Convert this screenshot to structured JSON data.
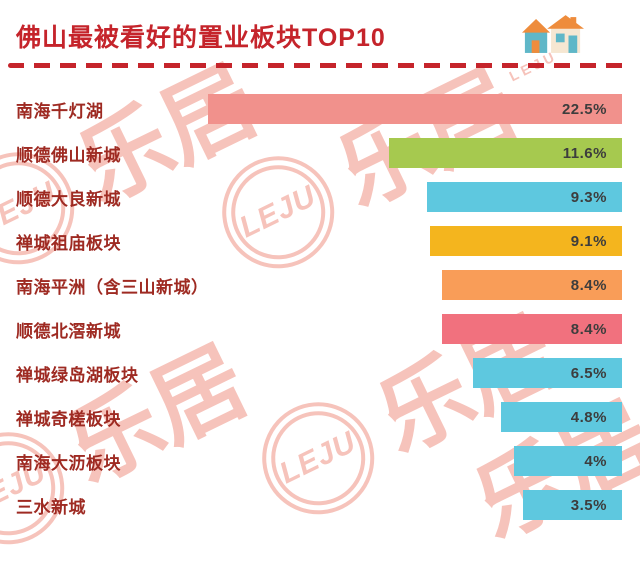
{
  "title": "佛山最被看好的置业板块TOP10",
  "watermark": {
    "logo": "LEJU",
    "brand": "乐居",
    "sub": "LEJU"
  },
  "colors": {
    "title": "#c5242b",
    "category_label": "#9e2a22",
    "value_text": "#3d3d3d",
    "dashed_line": "#c5242b",
    "watermark": "#f6c3bb",
    "default_bar": "#5ec8df"
  },
  "icons": {
    "top_right": "twin-houses-icon",
    "background": "leju-logo-icon"
  },
  "chart_data": {
    "type": "bar",
    "orientation": "horizontal",
    "title": "佛山最被看好的置业板块TOP10",
    "categories": [
      "南海千灯湖",
      "顺德佛山新城",
      "顺德大良新城",
      "禅城祖庙板块",
      "南海平洲（含三山新城）",
      "顺德北滘新城",
      "禅城绿岛湖板块",
      "禅城奇槎板块",
      "南海大沥板块",
      "三水新城"
    ],
    "values": [
      22.5,
      11.6,
      9.3,
      9.1,
      8.4,
      8.4,
      6.5,
      4.8,
      4,
      3.5
    ],
    "value_labels": [
      "22.5%",
      "11.6%",
      "9.3%",
      "9.1%",
      "8.4%",
      "8.4%",
      "6.5%",
      "4.8%",
      "4%",
      "3.5%"
    ],
    "bar_colors": [
      "#f1918c",
      "#a6c94f",
      "#5ec8df",
      "#f4b51e",
      "#f99d58",
      "#f1717e",
      "#5ec8df",
      "#5ec8df",
      "#5ec8df",
      "#5ec8df"
    ],
    "xlim": [
      0,
      22.5
    ],
    "grid": false,
    "legend": false,
    "bars_right_aligned": true
  }
}
